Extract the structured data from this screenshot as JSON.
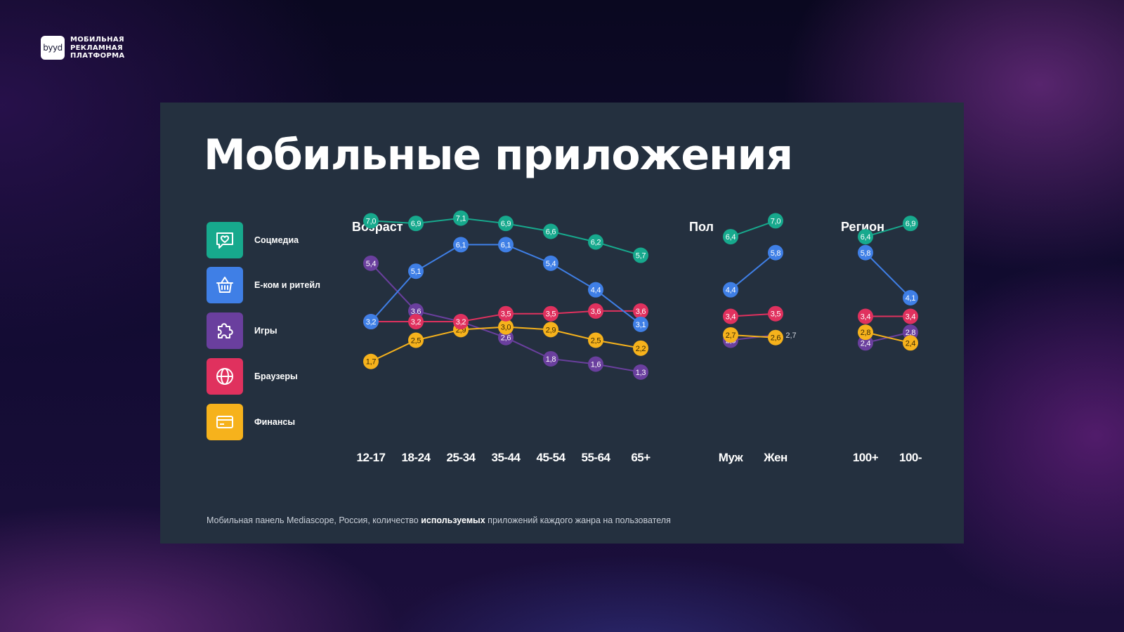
{
  "brand": {
    "logo_text": "byyd",
    "lines": [
      "МОБИЛЬНАЯ",
      "РЕКЛАМНАЯ",
      "ПЛАТФОРМА"
    ]
  },
  "slide": {
    "title": "Мобильные приложения",
    "footnote": {
      "pre": "Мобильная панель Mediascope, Россия, количество ",
      "bold": "используемых",
      "post": " приложений каждого жанра на пользователя"
    }
  },
  "legend": [
    {
      "label": "Соцмедиа",
      "color": "#17a98d",
      "icon": "chat-heart-icon"
    },
    {
      "label": "E-ком и ритейл",
      "color": "#3f7fe6",
      "icon": "basket-icon"
    },
    {
      "label": "Игры",
      "color": "#6a3f9e",
      "icon": "puzzle-icon"
    },
    {
      "label": "Браузеры",
      "color": "#e0315e",
      "icon": "globe-icon"
    },
    {
      "label": "Финансы",
      "color": "#f6b21c",
      "icon": "card-icon"
    }
  ],
  "chart_data": [
    {
      "type": "line",
      "title": "Возраст",
      "categories": [
        "12-17",
        "18-24",
        "25-34",
        "35-44",
        "45-54",
        "55-64",
        "65+"
      ],
      "series": [
        {
          "name": "Соцмедиа",
          "color": "#17a98d",
          "values": [
            7.0,
            6.9,
            7.1,
            6.9,
            6.6,
            6.2,
            5.7
          ],
          "labels": [
            "7,0",
            "6,9",
            "7,1",
            "6,9",
            "6,6",
            "6,2",
            "5,7"
          ]
        },
        {
          "name": "E-ком и ритейл",
          "color": "#3f7fe6",
          "values": [
            3.2,
            5.1,
            6.1,
            6.1,
            5.4,
            4.4,
            3.1
          ],
          "labels": [
            "3,2",
            "5,1",
            "6,1",
            "6,1",
            "5,4",
            "4,4",
            "3,1"
          ]
        },
        {
          "name": "Игры",
          "color": "#6a3f9e",
          "values": [
            5.4,
            3.6,
            3.2,
            2.6,
            1.8,
            1.6,
            1.3
          ],
          "labels": [
            "5,4",
            "3,6",
            "3,2",
            "2,6",
            "1,8",
            "1,6",
            "1,3"
          ]
        },
        {
          "name": "Браузеры",
          "color": "#e0315e",
          "values": [
            3.2,
            3.2,
            3.2,
            3.5,
            3.5,
            3.6,
            3.6
          ],
          "labels": [
            "3,2",
            "3,2",
            "3,2",
            "3,5",
            "3,5",
            "3,6",
            "3,6"
          ]
        },
        {
          "name": "Финансы",
          "color": "#f6b21c",
          "values": [
            1.7,
            2.5,
            2.9,
            3.0,
            2.9,
            2.5,
            2.2
          ],
          "labels": [
            "1,7",
            "2,5",
            "2,9",
            "3,0",
            "2,9",
            "2,5",
            "2,2"
          ]
        }
      ]
    },
    {
      "type": "line",
      "title": "Пол",
      "categories": [
        "Муж",
        "Жен"
      ],
      "series": [
        {
          "name": "Соцмедиа",
          "color": "#17a98d",
          "values": [
            6.4,
            7.0
          ],
          "labels": [
            "6,4",
            "7,0"
          ]
        },
        {
          "name": "E-ком и ритейл",
          "color": "#3f7fe6",
          "values": [
            4.4,
            5.8
          ],
          "labels": [
            "4,4",
            "5,8"
          ]
        },
        {
          "name": "Игры",
          "color": "#6a3f9e",
          "values": [
            2.5,
            2.7
          ],
          "labels": [
            "2,5",
            "2,7"
          ]
        },
        {
          "name": "Браузеры",
          "color": "#e0315e",
          "values": [
            3.4,
            3.5
          ],
          "labels": [
            "3,4",
            "3,5"
          ]
        },
        {
          "name": "Финансы",
          "color": "#f6b21c",
          "values": [
            2.7,
            2.6
          ],
          "labels": [
            "2,7",
            "2,6"
          ]
        }
      ]
    },
    {
      "type": "line",
      "title": "Регион",
      "categories": [
        "100+",
        "100-"
      ],
      "series": [
        {
          "name": "Соцмедиа",
          "color": "#17a98d",
          "values": [
            6.4,
            6.9
          ],
          "labels": [
            "6,4",
            "6,9"
          ]
        },
        {
          "name": "E-ком и ритейл",
          "color": "#3f7fe6",
          "values": [
            5.8,
            4.1
          ],
          "labels": [
            "5,8",
            "4,1"
          ]
        },
        {
          "name": "Игры",
          "color": "#6a3f9e",
          "values": [
            2.4,
            2.8
          ],
          "labels": [
            "2,4",
            "2,8"
          ]
        },
        {
          "name": "Браузеры",
          "color": "#e0315e",
          "values": [
            3.4,
            3.4
          ],
          "labels": [
            "3,4",
            "3,4"
          ]
        },
        {
          "name": "Финансы",
          "color": "#f6b21c",
          "values": [
            2.8,
            2.4
          ],
          "labels": [
            "2,8",
            "2,4"
          ]
        }
      ]
    }
  ]
}
